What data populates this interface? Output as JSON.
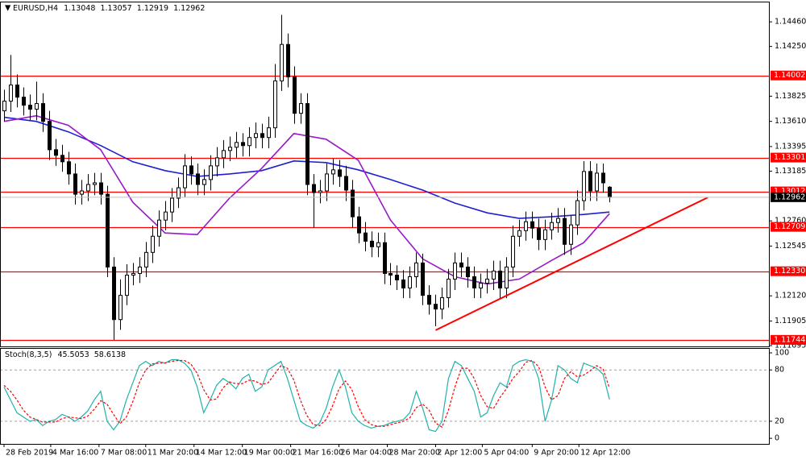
{
  "chart_data": {
    "type": "candlestick",
    "symbol": "EURUSD,H4",
    "xlim": [
      -0.5,
      118.875
    ],
    "xticks": [
      {
        "value": 0,
        "label": "28 Feb 2019"
      },
      {
        "value": 7.25,
        "label": "4 Mar 16:00"
      },
      {
        "value": 14.75,
        "label": "7 Mar 08:00"
      },
      {
        "value": 22,
        "label": "11 Mar 20:00"
      },
      {
        "value": 29.5,
        "label": "14 Mar 12:00"
      },
      {
        "value": 37,
        "label": "19 Mar 00:00"
      },
      {
        "value": 44.5,
        "label": "21 Mar 16:00"
      },
      {
        "value": 52,
        "label": "26 Mar 04:00"
      },
      {
        "value": 59.5,
        "label": "28 Mar 20:00"
      },
      {
        "value": 67,
        "label": "2 Apr 12:00"
      },
      {
        "value": 74.25,
        "label": "5 Apr 04:00"
      },
      {
        "value": 82,
        "label": "9 Apr 20:00"
      },
      {
        "value": 89.25,
        "label": "12 Apr 12:00"
      }
    ],
    "ylim": [
      1.11688,
      1.14626
    ],
    "yticks": [
      {
        "value": 1.1446,
        "label": "1.14460"
      },
      {
        "value": 1.1425,
        "label": "1.14250"
      },
      1.13825,
      {
        "value": 1.1361,
        "label": "1.13610"
      },
      1.13395,
      1.13185,
      {
        "value": 1.1276,
        "label": "1.12760"
      },
      1.12545,
      {
        "value": 1.1212,
        "label": "1.12120"
      },
      1.11905,
      1.11695
    ],
    "up_color": "#ffffff",
    "down_color": "#000000",
    "open": [
      1.137,
      1.13783,
      1.13921,
      1.13817,
      1.13748,
      1.13714,
      1.13762,
      1.1361,
      1.13368,
      1.1332,
      1.13265,
      1.13161,
      1.12988,
      1.13016,
      1.13071,
      1.13085,
      1.12988,
      1.12366,
      1.11917,
      1.12124,
      1.12297,
      1.12311,
      1.12366,
      1.12491,
      1.12629,
      1.12767,
      1.12836,
      1.12954,
      1.13043,
      1.1323,
      1.13161,
      1.13071,
      1.13113,
      1.1323,
      1.13299,
      1.13361,
      1.13389,
      1.1343,
      1.13403,
      1.13472,
      1.13506,
      1.13472,
      1.13555,
      1.13956,
      1.14267,
      1.1399,
      1.13679,
      1.13762,
      1.13071,
      1.13002,
      1.13016,
      1.13161,
      1.13196,
      1.1314,
      1.13023,
      1.12795,
      1.12657,
      1.12587,
      1.12539,
      1.12574,
      1.12311,
      1.12297,
      1.12256,
      1.12187,
      1.12283,
      1.12401,
      1.12124,
      1.12048,
      1.12007,
      1.12104,
      1.12263,
      1.12401,
      1.12366,
      1.12283,
      1.12187,
      1.12228,
      1.12263,
      1.12332,
      1.12187,
      1.12366,
      1.12629,
      1.12677,
      1.12753,
      1.12698,
      1.12601,
      1.12684,
      1.12746,
      1.12781,
      1.1256,
      1.12726,
      1.12933,
      1.13182,
      1.13016,
      1.13168,
      1.13048
    ],
    "high": [
      1.1388,
      1.14177,
      1.1401,
      1.139,
      1.1384,
      1.1395,
      1.1385,
      1.137,
      1.1346,
      1.1341,
      1.1335,
      1.1325,
      1.1311,
      1.1316,
      1.1317,
      1.1317,
      1.1306,
      1.1245,
      1.1226,
      1.1239,
      1.124,
      1.1245,
      1.1258,
      1.1272,
      1.1285,
      1.1293,
      1.1304,
      1.1313,
      1.1333,
      1.1331,
      1.1325,
      1.132,
      1.1332,
      1.1339,
      1.1345,
      1.1348,
      1.1352,
      1.1351,
      1.1356,
      1.136,
      1.1359,
      1.1365,
      1.141,
      1.1452,
      1.1436,
      1.1408,
      1.1385,
      1.1385,
      1.1316,
      1.1311,
      1.1325,
      1.1329,
      1.1328,
      1.1323,
      1.1311,
      1.1288,
      1.1275,
      1.1267,
      1.1266,
      1.1266,
      1.124,
      1.1238,
      1.1234,
      1.1237,
      1.1249,
      1.1248,
      1.1221,
      1.1213,
      1.1219,
      1.1235,
      1.1249,
      1.1249,
      1.1245,
      1.1237,
      1.1231,
      1.1235,
      1.1242,
      1.1242,
      1.1245,
      1.1272,
      1.1277,
      1.1284,
      1.1284,
      1.1278,
      1.1277,
      1.1283,
      1.1287,
      1.1287,
      1.1281,
      1.1302,
      1.1327,
      1.1327,
      1.1325,
      1.1325,
      1.13057
    ],
    "low": [
      1.1361,
      1.1369,
      1.1373,
      1.1366,
      1.1362,
      1.1362,
      1.1352,
      1.1328,
      1.1323,
      1.1318,
      1.1307,
      1.129,
      1.129,
      1.1293,
      1.1298,
      1.129,
      1.1228,
      1.11744,
      1.1183,
      1.1204,
      1.1221,
      1.1223,
      1.1228,
      1.124,
      1.1254,
      1.1268,
      1.1275,
      1.1287,
      1.1296,
      1.1307,
      1.1298,
      1.1298,
      1.1302,
      1.1314,
      1.1321,
      1.1327,
      1.133,
      1.1331,
      1.1331,
      1.1338,
      1.1338,
      1.1338,
      1.1347,
      1.1387,
      1.139,
      1.1359,
      1.1359,
      1.1298,
      1.127,
      1.1291,
      1.1293,
      1.1307,
      1.1305,
      1.1293,
      1.127,
      1.1257,
      1.125,
      1.1245,
      1.1245,
      1.1222,
      1.1221,
      1.1217,
      1.121,
      1.121,
      1.1219,
      1.1204,
      1.1196,
      1.1186,
      1.1192,
      1.1202,
      1.1217,
      1.1228,
      1.1219,
      1.121,
      1.121,
      1.1214,
      1.1217,
      1.121,
      1.121,
      1.1228,
      1.1254,
      1.1259,
      1.1261,
      1.1251,
      1.1251,
      1.126,
      1.1266,
      1.1247,
      1.1247,
      1.1264,
      1.1285,
      1.1293,
      1.1293,
      1.13,
      1.12919
    ],
    "close": [
      1.13783,
      1.13921,
      1.13817,
      1.13748,
      1.13714,
      1.13762,
      1.1361,
      1.13368,
      1.1332,
      1.13265,
      1.13161,
      1.12988,
      1.13016,
      1.13071,
      1.13085,
      1.12988,
      1.12366,
      1.11917,
      1.12124,
      1.12297,
      1.12311,
      1.12366,
      1.12491,
      1.12629,
      1.12767,
      1.12836,
      1.12954,
      1.13043,
      1.1323,
      1.13161,
      1.13071,
      1.13113,
      1.1323,
      1.13299,
      1.13361,
      1.13389,
      1.1343,
      1.13403,
      1.13472,
      1.13506,
      1.13472,
      1.13555,
      1.13956,
      1.14267,
      1.1399,
      1.13679,
      1.13762,
      1.13071,
      1.13002,
      1.13016,
      1.13161,
      1.13196,
      1.1314,
      1.13023,
      1.12795,
      1.12657,
      1.12587,
      1.12539,
      1.12574,
      1.12311,
      1.12297,
      1.12256,
      1.12187,
      1.12283,
      1.12401,
      1.12124,
      1.12048,
      1.12007,
      1.12104,
      1.12263,
      1.12401,
      1.12366,
      1.12283,
      1.12187,
      1.12228,
      1.12263,
      1.12332,
      1.12187,
      1.12366,
      1.12629,
      1.12677,
      1.12753,
      1.12698,
      1.12601,
      1.12684,
      1.12746,
      1.12781,
      1.1256,
      1.12726,
      1.12933,
      1.13182,
      1.13016,
      1.13168,
      1.13085,
      1.12962
    ],
    "moving_averages": [
      {
        "color": "#1f1fd0",
        "x": [
          0,
          5,
          10,
          15,
          20,
          25,
          30,
          35,
          40,
          45,
          50,
          55,
          60,
          65,
          70,
          75,
          80,
          85,
          90,
          94
        ],
        "values": [
          1.13645,
          1.1361,
          1.1352,
          1.13403,
          1.13265,
          1.13189,
          1.1314,
          1.13161,
          1.13189,
          1.13272,
          1.13258,
          1.13196,
          1.13113,
          1.13023,
          1.12912,
          1.12829,
          1.12781,
          1.12795,
          1.12815,
          1.12836
        ]
      },
      {
        "color": "#9a18c8",
        "x": [
          0,
          5,
          10,
          15,
          20,
          25,
          30,
          35,
          40,
          45,
          50,
          55,
          60,
          65,
          70,
          75,
          80,
          85,
          90,
          94
        ],
        "values": [
          1.1361,
          1.13658,
          1.13576,
          1.13368,
          1.12919,
          1.12657,
          1.12643,
          1.12954,
          1.13209,
          1.13506,
          1.13458,
          1.13278,
          1.12767,
          1.12435,
          1.12283,
          1.12221,
          1.12263,
          1.12422,
          1.12574,
          1.12822
        ]
      }
    ],
    "levels": {
      "color": "#ff0000",
      "values": [
        1.14002,
        1.13301,
        1.13012,
        1.12709,
        {
          "value": 1.1233,
          "label": "1.12330"
        },
        1.11744
      ]
    },
    "trendline": {
      "color": "#ff0000",
      "x": [
        67,
        109.25
      ],
      "y": [
        1.11826,
        1.1296
      ]
    },
    "stochastic": {
      "type": "line",
      "name": "Stoch(8,3,5)",
      "ylim": [
        -6.5,
        104.7
      ],
      "yticks": [
        100,
        80,
        20,
        0
      ],
      "series": [
        {
          "color": "#20b2aa",
          "values": [
            60,
            45,
            30,
            25,
            20,
            22,
            15,
            20,
            22,
            28,
            25,
            20,
            25,
            32,
            45,
            55,
            20,
            10,
            20,
            45,
            65,
            85,
            90,
            85,
            90,
            88,
            92,
            92,
            88,
            80,
            60,
            30,
            45,
            62,
            70,
            65,
            58,
            70,
            75,
            55,
            60,
            80,
            85,
            90,
            70,
            45,
            20,
            15,
            12,
            18,
            35,
            60,
            80,
            60,
            30,
            20,
            15,
            12,
            14,
            15,
            18,
            20,
            22,
            30,
            55,
            35,
            10,
            8,
            20,
            70,
            90,
            85,
            70,
            55,
            25,
            30,
            50,
            65,
            60,
            85,
            90,
            92,
            90,
            70,
            20,
            45,
            85,
            80,
            70,
            65,
            88,
            85,
            82,
            75,
            45.5053
          ]
        },
        {
          "color": "#ff0000",
          "dashed": true,
          "values": [
            62,
            55,
            45,
            33,
            25,
            22,
            19,
            19,
            19,
            23,
            25,
            24,
            23,
            26,
            34,
            44,
            40,
            28,
            17,
            25,
            43,
            65,
            80,
            87,
            88,
            88,
            90,
            91,
            91,
            87,
            76,
            57,
            45,
            46,
            59,
            66,
            64,
            64,
            68,
            67,
            63,
            65,
            75,
            85,
            82,
            68,
            45,
            27,
            16,
            15,
            22,
            38,
            58,
            67,
            57,
            37,
            22,
            16,
            14,
            14,
            16,
            18,
            20,
            24,
            36,
            40,
            33,
            18,
            13,
            33,
            60,
            82,
            82,
            70,
            50,
            37,
            35,
            48,
            58,
            70,
            78,
            89,
            91,
            84,
            60,
            45,
            50,
            70,
            78,
            72,
            74,
            79,
            85,
            81,
            58.6138
          ]
        }
      ]
    }
  }
}
